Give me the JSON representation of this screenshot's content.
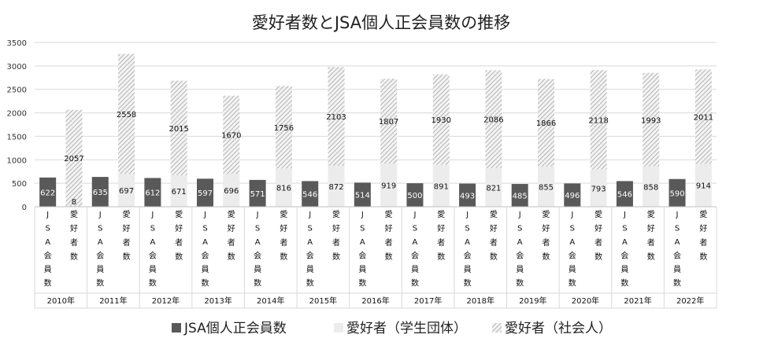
{
  "chart_data": {
    "type": "bar",
    "title": "愛好者数とJSA個人正会員数の推移",
    "ylim": [
      0,
      3500
    ],
    "yticks": [
      "0",
      "500",
      "1000",
      "1500",
      "2000",
      "2500",
      "3000",
      "3500"
    ],
    "grid": true,
    "legend_position": "bottom",
    "years": [
      "2010年",
      "2011年",
      "2012年",
      "2013年",
      "2014年",
      "2015年",
      "2016年",
      "2017年",
      "2018年",
      "2019年",
      "2020年",
      "2021年",
      "2022年"
    ],
    "sub_categories": [
      "JSA会員数",
      "愛好者数"
    ],
    "series": [
      {
        "name": "JSA個人正会員数",
        "color": "#595959",
        "values": [
          622,
          635,
          612,
          597,
          571,
          546,
          514,
          500,
          493,
          485,
          496,
          546,
          590
        ]
      },
      {
        "name": "愛好者（学生団体）",
        "color": "#ececec",
        "values": [
          8,
          697,
          671,
          696,
          816,
          872,
          919,
          891,
          821,
          855,
          793,
          858,
          914
        ]
      },
      {
        "name": "愛好者（社会人）",
        "color": "#d0d0d0",
        "values": [
          2057,
          2558,
          2015,
          1670,
          1756,
          2103,
          1807,
          1930,
          2086,
          1866,
          2118,
          1993,
          2011
        ]
      }
    ]
  }
}
